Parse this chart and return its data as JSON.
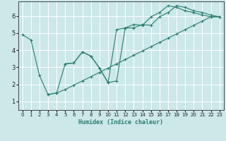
{
  "xlabel": "Humidex (Indice chaleur)",
  "bg_color": "#cce8e8",
  "grid_color": "#ffffff",
  "line_color": "#2a7d6e",
  "xlim": [
    -0.5,
    23.5
  ],
  "ylim": [
    0.5,
    6.85
  ],
  "xticks": [
    0,
    1,
    2,
    3,
    4,
    5,
    6,
    7,
    8,
    9,
    10,
    11,
    12,
    13,
    14,
    15,
    16,
    17,
    18,
    19,
    20,
    21,
    22,
    23
  ],
  "yticks": [
    1,
    2,
    3,
    4,
    5,
    6
  ],
  "line1_x": [
    0,
    1,
    2,
    3,
    4,
    5,
    6,
    7,
    8,
    9,
    10,
    11,
    12,
    13,
    14,
    15,
    16,
    17,
    18,
    19,
    20,
    21,
    22,
    23
  ],
  "line1_y": [
    4.9,
    4.6,
    2.5,
    1.4,
    1.5,
    3.2,
    3.25,
    3.9,
    3.65,
    2.95,
    2.1,
    2.2,
    5.3,
    5.3,
    5.5,
    5.45,
    5.95,
    6.2,
    6.6,
    6.5,
    6.3,
    6.2,
    6.05,
    5.95
  ],
  "line2_x": [
    3,
    4,
    5,
    6,
    7,
    8,
    9,
    10,
    11,
    12,
    13,
    14,
    15,
    16,
    17,
    18,
    19,
    20,
    21,
    22,
    23
  ],
  "line2_y": [
    1.4,
    1.5,
    1.7,
    1.95,
    2.2,
    2.45,
    2.7,
    2.95,
    3.2,
    3.45,
    3.7,
    3.95,
    4.2,
    4.45,
    4.7,
    4.95,
    5.2,
    5.45,
    5.7,
    5.95,
    5.95
  ],
  "line3_x": [
    5,
    6,
    7,
    8,
    9,
    10,
    11,
    12,
    13,
    14,
    15,
    16,
    17,
    18,
    19,
    20,
    21,
    22,
    23
  ],
  "line3_y": [
    3.2,
    3.25,
    3.9,
    3.65,
    2.95,
    2.1,
    5.2,
    5.3,
    5.5,
    5.45,
    5.95,
    6.2,
    6.6,
    6.5,
    6.3,
    6.2,
    6.05,
    5.95,
    5.95
  ]
}
